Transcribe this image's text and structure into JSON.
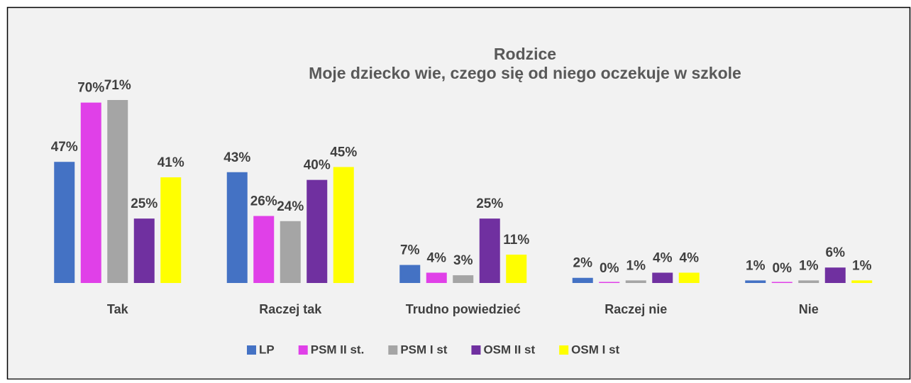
{
  "chart_data": {
    "type": "bar",
    "title": "Rodzice",
    "subtitle": "Moje dziecko wie, czego się od niego oczekuje w szkole",
    "categories": [
      "Tak",
      "Raczej tak",
      "Trudno powiedzieć",
      "Raczej nie",
      "Nie"
    ],
    "series": [
      {
        "name": "LP",
        "color": "#4472c4",
        "values": [
          47,
          43,
          7,
          2,
          1
        ],
        "value_labels": [
          "47%",
          "43%",
          "7%",
          "2%",
          "1%"
        ]
      },
      {
        "name": "PSM II st.",
        "color": "#e040e8",
        "values": [
          70,
          26,
          4,
          0,
          0
        ],
        "value_labels": [
          "70%",
          "26%",
          "4%",
          "0%",
          "0%"
        ]
      },
      {
        "name": "PSM I st",
        "color": "#a5a5a5",
        "values": [
          71,
          24,
          3,
          1,
          1
        ],
        "value_labels": [
          "71%",
          "24%",
          "3%",
          "1%",
          "1%"
        ]
      },
      {
        "name": "OSM II st",
        "color": "#7030a0",
        "values": [
          25,
          40,
          25,
          4,
          6
        ],
        "value_labels": [
          "25%",
          "40%",
          "25%",
          "4%",
          "6%"
        ]
      },
      {
        "name": "OSM I st",
        "color": "#ffff00",
        "values": [
          41,
          45,
          11,
          4,
          1
        ],
        "value_labels": [
          "41%",
          "45%",
          "11%",
          "4%",
          "1%"
        ]
      }
    ],
    "legend": "bottom"
  }
}
